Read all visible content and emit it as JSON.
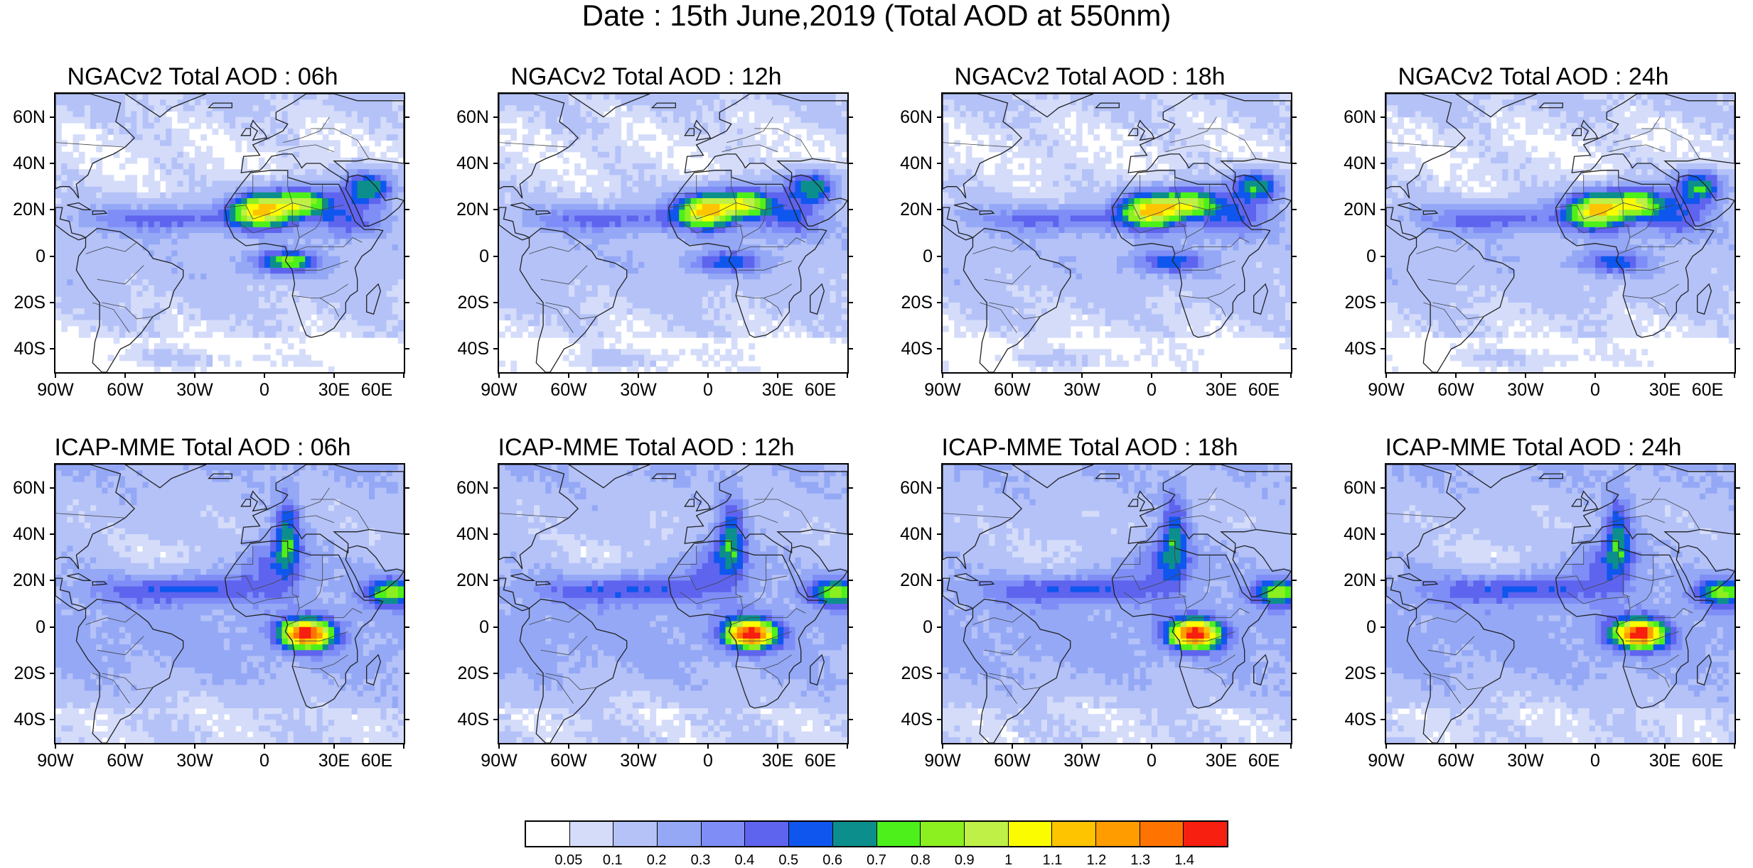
{
  "figure": {
    "title": "Date : 15th June,2019 (Total AOD at 550nm)"
  },
  "axes": {
    "lat_labels": [
      "60N",
      "40N",
      "20N",
      "0",
      "20S",
      "40S"
    ],
    "lat_values": [
      60,
      40,
      20,
      0,
      -20,
      -40
    ],
    "lon_labels": [
      "90W",
      "60W",
      "30W",
      "0",
      "30E",
      "60E"
    ],
    "lon_values": [
      -90,
      -60,
      -30,
      0,
      30,
      60
    ],
    "lon_range": [
      -90,
      60
    ],
    "lat_range": [
      -50,
      70
    ]
  },
  "panels": [
    {
      "title": "NGACv2 Total AOD : 06h",
      "model": "NGACv2",
      "lead": 6
    },
    {
      "title": "NGACv2 Total AOD : 12h",
      "model": "NGACv2",
      "lead": 12
    },
    {
      "title": "NGACv2 Total AOD : 18h",
      "model": "NGACv2",
      "lead": 18
    },
    {
      "title": "NGACv2 Total AOD : 24h",
      "model": "NGACv2",
      "lead": 24
    },
    {
      "title": "ICAP-MME Total AOD : 06h",
      "model": "ICAP-MME",
      "lead": 6
    },
    {
      "title": "ICAP-MME Total AOD : 12h",
      "model": "ICAP-MME",
      "lead": 12
    },
    {
      "title": "ICAP-MME Total AOD : 18h",
      "model": "ICAP-MME",
      "lead": 18
    },
    {
      "title": "ICAP-MME Total AOD : 24h",
      "model": "ICAP-MME",
      "lead": 24
    }
  ],
  "colorbar": {
    "colors": [
      "#ffffff",
      "#d4dcfa",
      "#b4c2f8",
      "#94a8f6",
      "#7e8ef6",
      "#5f64ee",
      "#0f56ee",
      "#0c8f8c",
      "#4df01a",
      "#8cf020",
      "#bff047",
      "#fcfc00",
      "#ffc400",
      "#ff9d00",
      "#ff7400",
      "#f61f10"
    ],
    "labels": [
      "0.05",
      "0.1",
      "0.2",
      "0.3",
      "0.4",
      "0.5",
      "0.6",
      "0.7",
      "0.8",
      "0.9",
      "1",
      "1.1",
      "1.2",
      "1.3",
      "1.4"
    ]
  }
}
